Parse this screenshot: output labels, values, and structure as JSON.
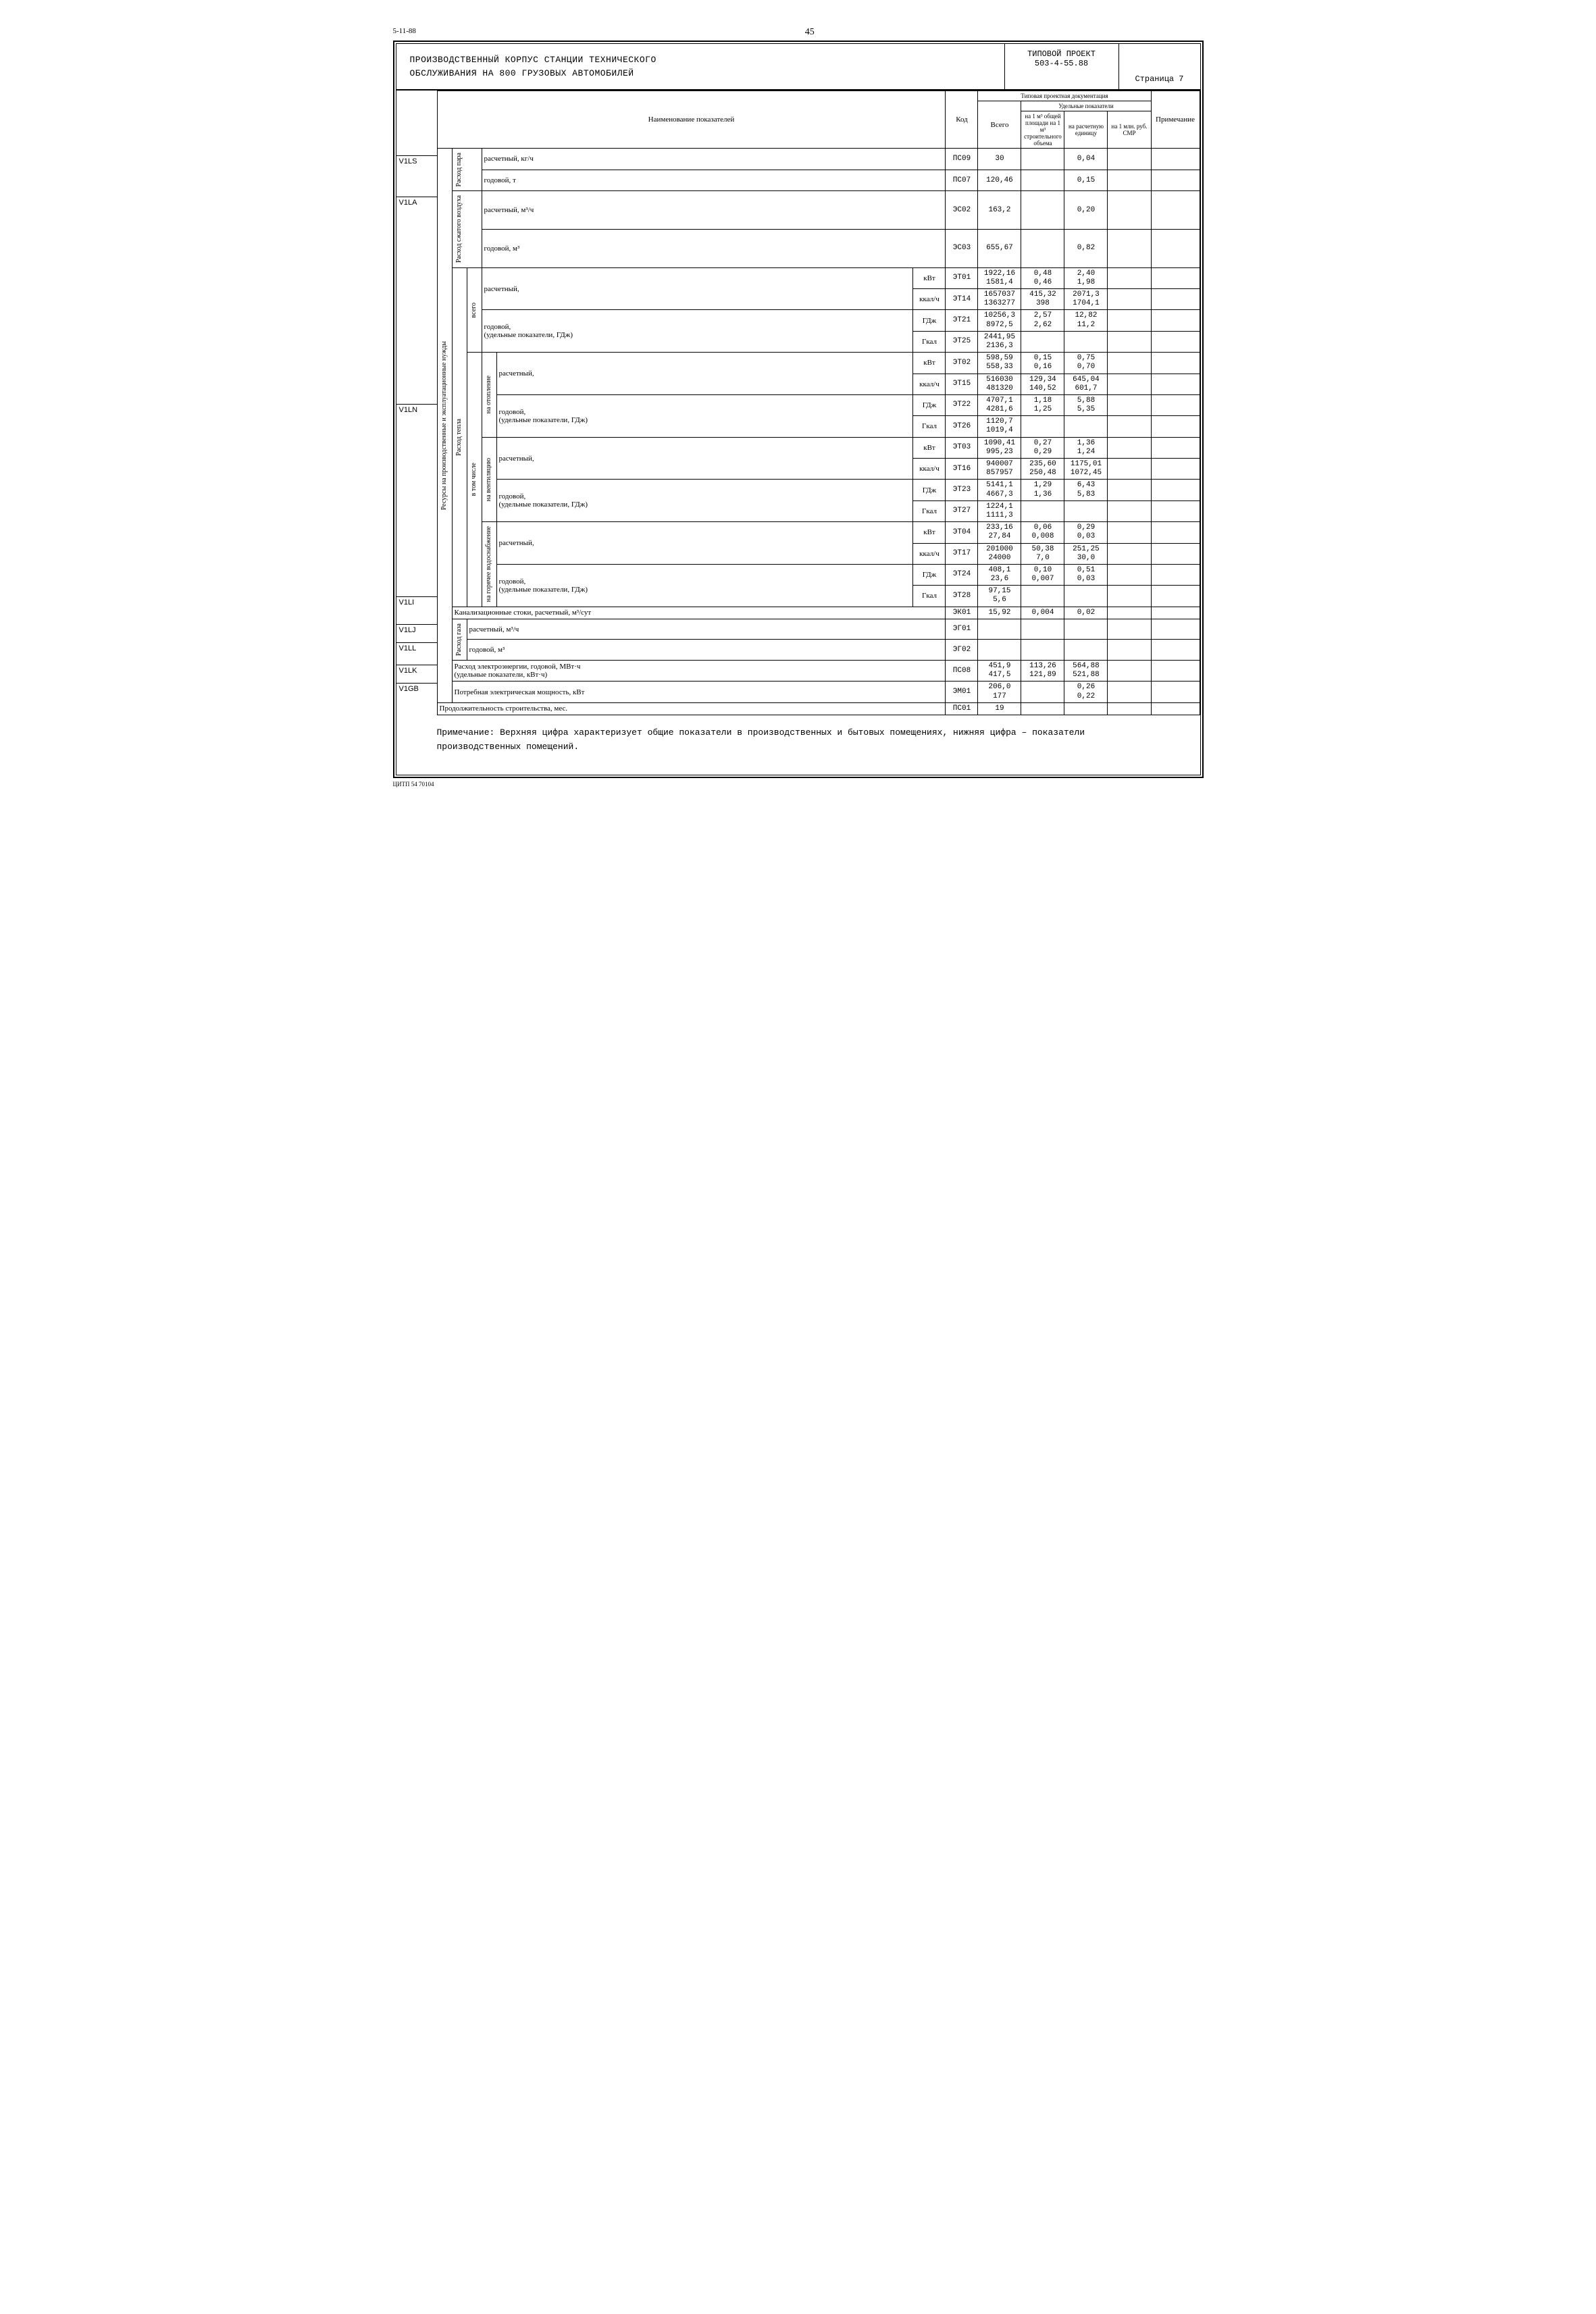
{
  "top_left": "5-11-88",
  "top_center": "45",
  "header": {
    "title_line1": "ПРОИЗВОДСТВЕННЫЙ КОРПУС СТАНЦИИ ТЕХНИЧЕСКОГО",
    "title_line2": "ОБСЛУЖИВАНИЯ НА 800 ГРУЗОВЫХ АВТОМОБИЛЕЙ",
    "proj_label": "ТИПОВОЙ ПРОЕКТ",
    "proj_num": "503-4-55.88",
    "page_label": "Страница 7"
  },
  "col_headers": {
    "name": "Наименование показателей",
    "kod": "Код",
    "doc_group": "Типовая проектная документация",
    "vsego": "Всего",
    "ud_group": "Удельные показатели",
    "ud1": "на 1 м³ общей площади на 1 м³ строительного объема",
    "ud2": "на расчетную единицу",
    "ud3": "на 1 млн. руб. СМР",
    "prim": "Примечание"
  },
  "side_codes": [
    "V1LS",
    "V1LA",
    "V1LN",
    "V1LI",
    "V1LJ",
    "V1LL",
    "V1LK",
    "V1GB"
  ],
  "groups": {
    "par": "Расход пара",
    "air": "Расход сжатого воздуха",
    "heat": "Расход тепла",
    "res": "Ресурсы на производственные и эксплуатационные нужды",
    "vsego": "всего",
    "vtom": "в том числе",
    "otop": "на отопление",
    "vent": "на вентиляцию",
    "gvs": "на горячее водоснабжение",
    "gas": "Расход газа"
  },
  "row_labels": {
    "rasch_kgch": "расчетный, кг/ч",
    "god_t": "годовой, т",
    "rasch_m3ch": "расчетный, м³/ч",
    "god_m3": "годовой, м³",
    "rasch": "расчетный,",
    "god_ud": "годовой,\n(удельные показатели, ГДж)",
    "kvt": "кВт",
    "kkalch": "ккал/ч",
    "gdz": "ГДж",
    "gkal": "Гкал",
    "kanal": "Канализационные стоки, расчетный, м³/сут",
    "elec_god": "Расход электроэнергии, годовой, МВт·ч\n(удельные показатели, кВт·ч)",
    "elec_pow": "Потребная электрическая мощность, кВт",
    "dur": "Продолжительность строительства, мес."
  },
  "rows": [
    {
      "kod": "ПС09",
      "v": "30",
      "u1": "",
      "u2": "0,04",
      "u3": ""
    },
    {
      "kod": "ПС07",
      "v": "120,46",
      "u1": "",
      "u2": "0,15",
      "u3": ""
    },
    {
      "kod": "ЭС02",
      "v": "163,2",
      "u1": "",
      "u2": "0,20",
      "u3": ""
    },
    {
      "kod": "ЭС03",
      "v": "655,67",
      "u1": "",
      "u2": "0,82",
      "u3": ""
    },
    {
      "kod": "ЭТ01",
      "v": "1922,16\n1581,4",
      "u1": "0,48\n0,46",
      "u2": "2,40\n1,98",
      "u3": ""
    },
    {
      "kod": "ЭТ14",
      "v": "1657037\n1363277",
      "u1": "415,32\n398",
      "u2": "2071,3\n1704,1",
      "u3": ""
    },
    {
      "kod": "ЭТ21",
      "v": "10256,3\n8972,5",
      "u1": "2,57\n2,62",
      "u2": "12,82\n11,2",
      "u3": ""
    },
    {
      "kod": "ЭТ25",
      "v": "2441,95\n2136,3",
      "u1": "",
      "u2": "",
      "u3": ""
    },
    {
      "kod": "ЭТ02",
      "v": "598,59\n558,33",
      "u1": "0,15\n0,16",
      "u2": "0,75\n0,70",
      "u3": ""
    },
    {
      "kod": "ЭТ15",
      "v": "516030\n481320",
      "u1": "129,34\n140,52",
      "u2": "645,04\n601,7",
      "u3": ""
    },
    {
      "kod": "ЭТ22",
      "v": "4707,1\n4281,6",
      "u1": "1,18\n1,25",
      "u2": "5,88\n5,35",
      "u3": ""
    },
    {
      "kod": "ЭТ26",
      "v": "1120,7\n1019,4",
      "u1": "",
      "u2": "",
      "u3": ""
    },
    {
      "kod": "ЭТ03",
      "v": "1090,41\n995,23",
      "u1": "0,27\n0,29",
      "u2": "1,36\n1,24",
      "u3": ""
    },
    {
      "kod": "ЭТ16",
      "v": "940007\n857957",
      "u1": "235,60\n250,48",
      "u2": "1175,01\n1072,45",
      "u3": ""
    },
    {
      "kod": "ЭТ23",
      "v": "5141,1\n4667,3",
      "u1": "1,29\n1,36",
      "u2": "6,43\n5,83",
      "u3": ""
    },
    {
      "kod": "ЭТ27",
      "v": "1224,1\n1111,3",
      "u1": "",
      "u2": "",
      "u3": ""
    },
    {
      "kod": "ЭТ04",
      "v": "233,16\n27,84",
      "u1": "0,06\n0,008",
      "u2": "0,29\n0,03",
      "u3": ""
    },
    {
      "kod": "ЭТ17",
      "v": "201000\n24000",
      "u1": "50,38\n7,0",
      "u2": "251,25\n30,0",
      "u3": ""
    },
    {
      "kod": "ЭТ24",
      "v": "408,1\n23,6",
      "u1": "0,10\n0,007",
      "u2": "0,51\n0,03",
      "u3": ""
    },
    {
      "kod": "ЭТ28",
      "v": "97,15\n5,6",
      "u1": "",
      "u2": "",
      "u3": ""
    },
    {
      "kod": "ЭК01",
      "v": "15,92",
      "u1": "0,004",
      "u2": "0,02",
      "u3": ""
    },
    {
      "kod": "ЭГ01",
      "v": "",
      "u1": "",
      "u2": "",
      "u3": ""
    },
    {
      "kod": "ЭГ02",
      "v": "",
      "u1": "",
      "u2": "",
      "u3": ""
    },
    {
      "kod": "ПС08",
      "v": "451,9\n417,5",
      "u1": "113,26\n121,89",
      "u2": "564,88\n521,88",
      "u3": ""
    },
    {
      "kod": "ЭМ01",
      "v": "206,0\n177",
      "u1": "",
      "u2": "0,26\n0,22",
      "u3": ""
    },
    {
      "kod": "ПС01",
      "v": "19",
      "u1": "",
      "u2": "",
      "u3": ""
    }
  ],
  "note": {
    "label": "Примечание:",
    "text": "Верхняя цифра характеризует общие показатели в производственных и бытовых помещениях, нижняя цифра – показатели производственных помещений."
  },
  "footer": "ЦИТП 54 70104"
}
